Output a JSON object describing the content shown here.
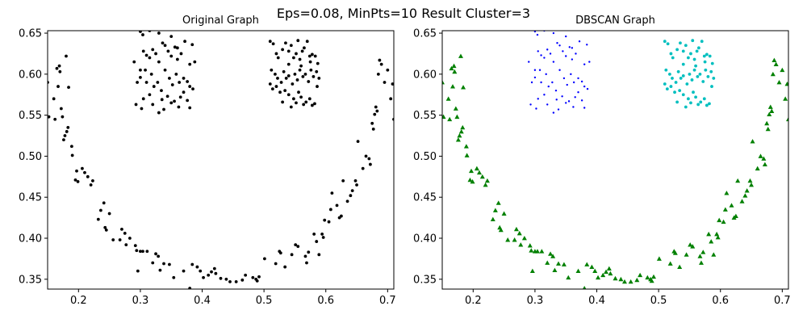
{
  "figure": {
    "suptitle": "Eps=0.08, MinPts=10  Result Cluster=3"
  },
  "chart_data": [
    {
      "type": "scatter",
      "title": "Original Graph",
      "xlabel": "",
      "ylabel": "",
      "xlim": [
        0.15,
        0.71
      ],
      "ylim": [
        0.338,
        0.653
      ],
      "xticks": [
        "0.2",
        "0.3",
        "0.4",
        "0.5",
        "0.6",
        "0.7"
      ],
      "yticks": [
        "0.35",
        "0.40",
        "0.45",
        "0.50",
        "0.55",
        "0.60",
        "0.65"
      ],
      "grid": false,
      "colors": {
        "all": "#000000"
      },
      "series": [
        {
          "marker": "circle",
          "color": "#000000",
          "points": [
            [
              0.15,
              0.59
            ],
            [
              0.152,
              0.548
            ],
            [
              0.16,
              0.57
            ],
            [
              0.162,
              0.545
            ],
            [
              0.165,
              0.607
            ],
            [
              0.167,
              0.585
            ],
            [
              0.169,
              0.61
            ],
            [
              0.17,
              0.603
            ],
            [
              0.172,
              0.558
            ],
            [
              0.174,
              0.548
            ],
            [
              0.176,
              0.52
            ],
            [
              0.178,
              0.525
            ],
            [
              0.18,
              0.622
            ],
            [
              0.181,
              0.53
            ],
            [
              0.183,
              0.535
            ],
            [
              0.184,
              0.584
            ],
            [
              0.189,
              0.512
            ],
            [
              0.19,
              0.501
            ],
            [
              0.195,
              0.471
            ],
            [
              0.197,
              0.482
            ],
            [
              0.199,
              0.469
            ],
            [
              0.206,
              0.485
            ],
            [
              0.21,
              0.48
            ],
            [
              0.215,
              0.475
            ],
            [
              0.22,
              0.465
            ],
            [
              0.223,
              0.47
            ],
            [
              0.232,
              0.423
            ],
            [
              0.236,
              0.434
            ],
            [
              0.241,
              0.443
            ],
            [
              0.243,
              0.413
            ],
            [
              0.245,
              0.41
            ],
            [
              0.25,
              0.43
            ],
            [
              0.256,
              0.398
            ],
            [
              0.267,
              0.398
            ],
            [
              0.27,
              0.411
            ],
            [
              0.275,
              0.406
            ],
            [
              0.277,
              0.392
            ],
            [
              0.283,
              0.4
            ],
            [
              0.292,
              0.391
            ],
            [
              0.294,
              0.385
            ],
            [
              0.296,
              0.36
            ],
            [
              0.3,
              0.384
            ],
            [
              0.304,
              0.384
            ],
            [
              0.311,
              0.384
            ],
            [
              0.32,
              0.37
            ],
            [
              0.325,
              0.381
            ],
            [
              0.329,
              0.378
            ],
            [
              0.332,
              0.361
            ],
            [
              0.338,
              0.369
            ],
            [
              0.347,
              0.368
            ],
            [
              0.354,
              0.352
            ],
            [
              0.37,
              0.36
            ],
            [
              0.38,
              0.339
            ],
            [
              0.384,
              0.368
            ],
            [
              0.392,
              0.365
            ],
            [
              0.397,
              0.36
            ],
            [
              0.402,
              0.352
            ],
            [
              0.41,
              0.355
            ],
            [
              0.415,
              0.359
            ],
            [
              0.42,
              0.363
            ],
            [
              0.422,
              0.357
            ],
            [
              0.43,
              0.351
            ],
            [
              0.439,
              0.35
            ],
            [
              0.445,
              0.347
            ],
            [
              0.455,
              0.347
            ],
            [
              0.465,
              0.349
            ],
            [
              0.47,
              0.355
            ],
            [
              0.482,
              0.352
            ],
            [
              0.487,
              0.35
            ],
            [
              0.489,
              0.348
            ],
            [
              0.492,
              0.353
            ],
            [
              0.501,
              0.375
            ],
            [
              0.519,
              0.369
            ],
            [
              0.525,
              0.384
            ],
            [
              0.527,
              0.382
            ],
            [
              0.534,
              0.365
            ],
            [
              0.545,
              0.38
            ],
            [
              0.551,
              0.392
            ],
            [
              0.555,
              0.39
            ],
            [
              0.567,
              0.378
            ],
            [
              0.569,
              0.37
            ],
            [
              0.572,
              0.383
            ],
            [
              0.581,
              0.405
            ],
            [
              0.585,
              0.396
            ],
            [
              0.589,
              0.38
            ],
            [
              0.594,
              0.405
            ],
            [
              0.596,
              0.401
            ],
            [
              0.598,
              0.422
            ],
            [
              0.605,
              0.42
            ],
            [
              0.608,
              0.435
            ],
            [
              0.61,
              0.455
            ],
            [
              0.618,
              0.44
            ],
            [
              0.622,
              0.425
            ],
            [
              0.625,
              0.427
            ],
            [
              0.628,
              0.47
            ],
            [
              0.635,
              0.445
            ],
            [
              0.64,
              0.452
            ],
            [
              0.643,
              0.458
            ],
            [
              0.648,
              0.47
            ],
            [
              0.65,
              0.465
            ],
            [
              0.652,
              0.518
            ],
            [
              0.66,
              0.485
            ],
            [
              0.665,
              0.5
            ],
            [
              0.67,
              0.497
            ],
            [
              0.672,
              0.49
            ],
            [
              0.675,
              0.54
            ],
            [
              0.677,
              0.533
            ],
            [
              0.679,
              0.551
            ],
            [
              0.681,
              0.56
            ],
            [
              0.683,
              0.555
            ],
            [
              0.685,
              0.6
            ],
            [
              0.687,
              0.617
            ],
            [
              0.69,
              0.612
            ],
            [
              0.695,
              0.59
            ],
            [
              0.7,
              0.605
            ],
            [
              0.705,
              0.57
            ],
            [
              0.708,
              0.588
            ],
            [
              0.71,
              0.545
            ],
            [
              0.3,
              0.652
            ],
            [
              0.304,
              0.648
            ],
            [
              0.315,
              0.653
            ],
            [
              0.33,
              0.65
            ],
            [
              0.35,
              0.646
            ],
            [
              0.29,
              0.615
            ],
            [
              0.3,
              0.605
            ],
            [
              0.305,
              0.628
            ],
            [
              0.31,
              0.623
            ],
            [
              0.315,
              0.62
            ],
            [
              0.32,
              0.63
            ],
            [
              0.325,
              0.625
            ],
            [
              0.33,
              0.615
            ],
            [
              0.336,
              0.638
            ],
            [
              0.34,
              0.635
            ],
            [
              0.345,
              0.628
            ],
            [
              0.35,
              0.622
            ],
            [
              0.356,
              0.633
            ],
            [
              0.36,
              0.618
            ],
            [
              0.366,
              0.625
            ],
            [
              0.372,
              0.64
            ],
            [
              0.38,
              0.612
            ],
            [
              0.384,
              0.636
            ],
            [
              0.388,
              0.615
            ],
            [
              0.295,
              0.59
            ],
            [
              0.3,
              0.596
            ],
            [
              0.308,
              0.605
            ],
            [
              0.318,
              0.6
            ],
            [
              0.322,
              0.585
            ],
            [
              0.328,
              0.59
            ],
            [
              0.334,
              0.58
            ],
            [
              0.34,
              0.605
            ],
            [
              0.347,
              0.595
            ],
            [
              0.352,
              0.587
            ],
            [
              0.358,
              0.6
            ],
            [
              0.363,
              0.59
            ],
            [
              0.37,
              0.595
            ],
            [
              0.376,
              0.591
            ],
            [
              0.38,
              0.585
            ],
            [
              0.385,
              0.582
            ],
            [
              0.293,
              0.563
            ],
            [
              0.302,
              0.558
            ],
            [
              0.305,
              0.57
            ],
            [
              0.315,
              0.575
            ],
            [
              0.32,
              0.563
            ],
            [
              0.33,
              0.553
            ],
            [
              0.335,
              0.569
            ],
            [
              0.338,
              0.557
            ],
            [
              0.344,
              0.573
            ],
            [
              0.35,
              0.565
            ],
            [
              0.355,
              0.567
            ],
            [
              0.362,
              0.56
            ],
            [
              0.365,
              0.572
            ],
            [
              0.37,
              0.578
            ],
            [
              0.376,
              0.568
            ],
            [
              0.38,
              0.559
            ],
            [
              0.31,
              0.59
            ],
            [
              0.36,
              0.632
            ],
            [
              0.51,
              0.64
            ],
            [
              0.515,
              0.637
            ],
            [
              0.52,
              0.625
            ],
            [
              0.523,
              0.62
            ],
            [
              0.53,
              0.63
            ],
            [
              0.535,
              0.638
            ],
            [
              0.54,
              0.628
            ],
            [
              0.544,
              0.635
            ],
            [
              0.548,
              0.62
            ],
            [
              0.552,
              0.625
            ],
            [
              0.555,
              0.641
            ],
            [
              0.558,
              0.618
            ],
            [
              0.562,
              0.628
            ],
            [
              0.565,
              0.632
            ],
            [
              0.57,
              0.64
            ],
            [
              0.574,
              0.622
            ],
            [
              0.578,
              0.624
            ],
            [
              0.583,
              0.622
            ],
            [
              0.587,
              0.613
            ],
            [
              0.512,
              0.605
            ],
            [
              0.518,
              0.6
            ],
            [
              0.522,
              0.595
            ],
            [
              0.528,
              0.59
            ],
            [
              0.532,
              0.603
            ],
            [
              0.536,
              0.595
            ],
            [
              0.54,
              0.598
            ],
            [
              0.546,
              0.588
            ],
            [
              0.55,
              0.6
            ],
            [
              0.554,
              0.593
            ],
            [
              0.558,
              0.605
            ],
            [
              0.563,
              0.597
            ],
            [
              0.567,
              0.6
            ],
            [
              0.572,
              0.591
            ],
            [
              0.576,
              0.605
            ],
            [
              0.58,
              0.597
            ],
            [
              0.585,
              0.603
            ],
            [
              0.589,
              0.595
            ],
            [
              0.51,
              0.588
            ],
            [
              0.514,
              0.582
            ],
            [
              0.52,
              0.585
            ],
            [
              0.526,
              0.578
            ],
            [
              0.53,
              0.566
            ],
            [
              0.534,
              0.58
            ],
            [
              0.54,
              0.575
            ],
            [
              0.544,
              0.56
            ],
            [
              0.548,
              0.57
            ],
            [
              0.552,
              0.565
            ],
            [
              0.556,
              0.578
            ],
            [
              0.56,
              0.572
            ],
            [
              0.564,
              0.563
            ],
            [
              0.568,
              0.566
            ],
            [
              0.574,
              0.57
            ],
            [
              0.578,
              0.562
            ],
            [
              0.582,
              0.564
            ],
            [
              0.586,
              0.585
            ],
            [
              0.54,
              0.612
            ],
            [
              0.56,
              0.61
            ],
            [
              0.575,
              0.615
            ]
          ]
        }
      ]
    },
    {
      "type": "scatter",
      "title": "DBSCAN Graph",
      "xlabel": "",
      "ylabel": "",
      "xlim": [
        0.15,
        0.71
      ],
      "ylim": [
        0.338,
        0.653
      ],
      "xticks": [
        "0.2",
        "0.3",
        "0.4",
        "0.5",
        "0.6",
        "0.7"
      ],
      "yticks": [
        "0.35",
        "0.40",
        "0.45",
        "0.50",
        "0.55",
        "0.60",
        "0.65"
      ],
      "grid": false,
      "series": [
        {
          "marker": "triangle",
          "color": "#008000",
          "source_range": [
            0,
            118
          ]
        },
        {
          "marker": "small-dot",
          "color": "#0000ff",
          "source_range": [
            118,
            176
          ]
        },
        {
          "marker": "circle",
          "color": "#00bfbf",
          "source_range": [
            176,
            238
          ]
        }
      ]
    }
  ]
}
